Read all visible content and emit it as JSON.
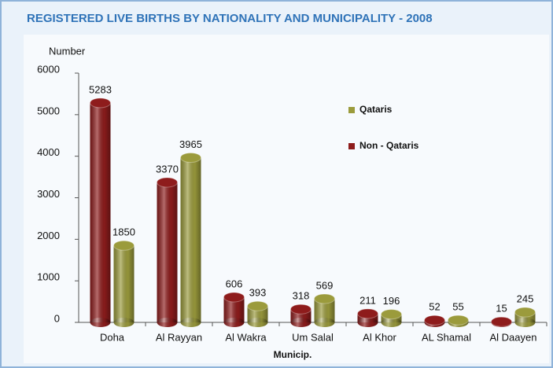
{
  "chart_data": {
    "type": "bar",
    "title": "REGISTERED LIVE BIRTHS BY NATIONALITY AND MUNICIPALITY - 2008",
    "y_label": "Number",
    "x_label": "Municip.",
    "categories": [
      "Doha",
      "Al Rayyan",
      "Al Wakra",
      "Um Salal",
      "Al Khor",
      "AL Shamal",
      "Al Daayen"
    ],
    "series": [
      {
        "name": "Non - Qataris",
        "color": "#8e1c1c",
        "values": [
          5283,
          3370,
          606,
          318,
          211,
          52,
          15
        ]
      },
      {
        "name": "Qataris",
        "color": "#9b9b3c",
        "values": [
          1850,
          3965,
          393,
          569,
          196,
          55,
          245
        ]
      }
    ],
    "ylim": [
      0,
      6000
    ],
    "yticks": [
      0,
      1000,
      2000,
      3000,
      4000,
      5000,
      6000
    ],
    "grid": false
  }
}
